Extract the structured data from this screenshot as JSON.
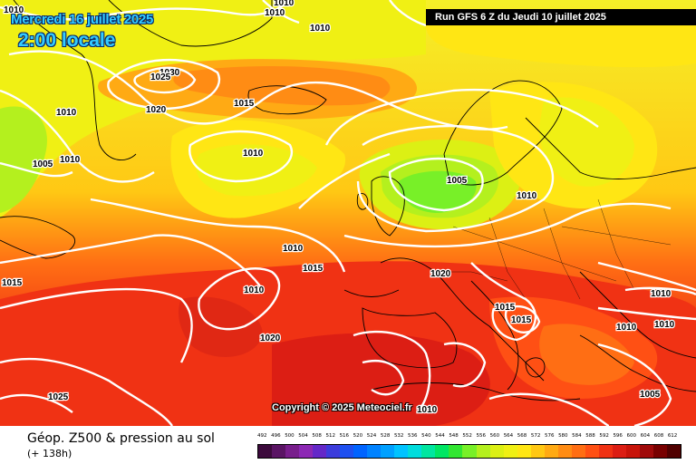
{
  "header": {
    "date": "Mercredi 16 juillet 2025",
    "time": "2:00 locale",
    "run": "Run GFS 6 Z du Jeudi 10 juillet 2025"
  },
  "copyright": "Copyright © 2025 Meteociel.fr",
  "footer": {
    "title": "Géop. Z500 & pression au sol",
    "subtitle": "(+ 138h)"
  },
  "isobar_labels": [
    "1010",
    "1010",
    "1010",
    "1030",
    "1025",
    "1010",
    "1020",
    "1015",
    "1005",
    "1010",
    "1010",
    "1005",
    "1010",
    "1010",
    "1015",
    "1020",
    "1015",
    "1010",
    "1010",
    "1015",
    "1015",
    "1010",
    "1020",
    "1025",
    "1010",
    "1010",
    "1010",
    "1005"
  ],
  "scale": {
    "labels": [
      "492",
      "496",
      "500",
      "504",
      "508",
      "512",
      "516",
      "520",
      "524",
      "528",
      "532",
      "536",
      "540",
      "544",
      "548",
      "552",
      "556",
      "560",
      "564",
      "568",
      "572",
      "576",
      "580",
      "584",
      "588",
      "592",
      "596",
      "600",
      "604",
      "608",
      "612"
    ],
    "colors": [
      "#3c0a3c",
      "#5a1464",
      "#781e8c",
      "#8c28b4",
      "#6428c8",
      "#3c3cdc",
      "#1e50f0",
      "#0064ff",
      "#0082ff",
      "#00a0ff",
      "#00c3ff",
      "#00dcdc",
      "#00e6a0",
      "#00e664",
      "#32e632",
      "#78f028",
      "#b4f01e",
      "#dcf014",
      "#f0f014",
      "#ffe614",
      "#ffc814",
      "#ffaa14",
      "#ff8c14",
      "#ff6e14",
      "#ff5014",
      "#f03214",
      "#dc1e14",
      "#c8140a",
      "#a00a0a",
      "#780000",
      "#500000"
    ]
  }
}
